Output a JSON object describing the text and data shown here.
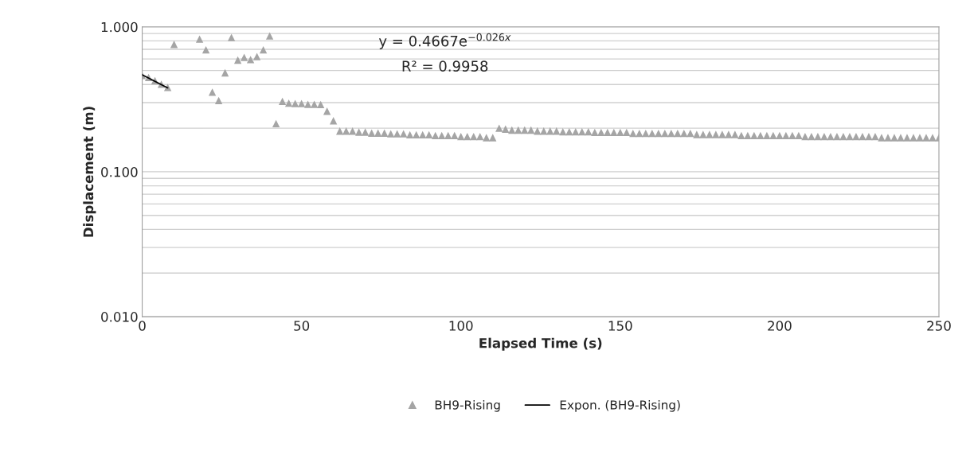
{
  "chart_data": {
    "type": "scatter",
    "xlabel": "Elapsed Time (s)",
    "ylabel": "Displacement (m)",
    "log": "y",
    "grid": "y",
    "legend": "bottom",
    "marker": "triangle",
    "xlim": [
      0,
      250
    ],
    "xticks": [
      0,
      50,
      100,
      150,
      200,
      250
    ],
    "ylim": [
      0.01,
      1
    ],
    "yticks": [
      {
        "value": 0.01,
        "label": "0.010"
      },
      {
        "value": 0.1,
        "label": "0.100"
      },
      {
        "value": 1,
        "label": "1.000"
      }
    ],
    "annotations": [
      "y = 0.4667e$^{−0.026x}$",
      "R² = 0.9958"
    ],
    "series": [
      {
        "name": "BH9-Rising",
        "color": "#a5a5a5",
        "x": [
          0,
          2,
          4,
          6,
          8,
          10,
          18,
          20,
          22,
          24,
          26,
          28,
          30,
          32,
          34,
          36,
          38,
          40,
          42,
          44,
          46,
          48,
          50,
          52,
          54,
          56,
          58,
          60,
          62,
          64,
          66,
          68,
          70,
          72,
          74,
          76,
          78,
          80,
          82,
          84,
          86,
          88,
          90,
          92,
          94,
          96,
          98,
          100,
          102,
          104,
          106,
          108,
          110,
          112,
          114,
          116,
          118,
          120,
          122,
          124,
          126,
          128,
          130,
          132,
          134,
          136,
          138,
          140,
          142,
          144,
          146,
          148,
          150,
          152,
          154,
          156,
          158,
          160,
          162,
          164,
          166,
          168,
          170,
          172,
          174,
          176,
          178,
          180,
          182,
          184,
          186,
          188,
          190,
          192,
          194,
          196,
          198,
          200,
          202,
          204,
          206,
          208,
          210,
          212,
          214,
          216,
          218,
          220,
          222,
          224,
          226,
          228,
          230,
          232,
          234,
          236,
          238,
          240,
          242,
          244,
          246,
          248,
          250
        ],
        "values": [
          0.462,
          0.447,
          0.425,
          0.402,
          0.382,
          0.757,
          0.824,
          0.695,
          0.354,
          0.31,
          0.482,
          0.845,
          0.59,
          0.616,
          0.595,
          0.624,
          0.695,
          0.867,
          0.215,
          0.306,
          0.298,
          0.296,
          0.296,
          0.292,
          0.292,
          0.291,
          0.262,
          0.225,
          0.191,
          0.191,
          0.191,
          0.188,
          0.188,
          0.185,
          0.185,
          0.185,
          0.183,
          0.183,
          0.183,
          0.18,
          0.18,
          0.18,
          0.18,
          0.178,
          0.178,
          0.178,
          0.178,
          0.175,
          0.175,
          0.175,
          0.175,
          0.172,
          0.172,
          0.2,
          0.197,
          0.194,
          0.194,
          0.194,
          0.194,
          0.191,
          0.191,
          0.191,
          0.191,
          0.189,
          0.189,
          0.189,
          0.189,
          0.189,
          0.187,
          0.187,
          0.187,
          0.187,
          0.187,
          0.187,
          0.184,
          0.184,
          0.184,
          0.184,
          0.184,
          0.184,
          0.184,
          0.184,
          0.184,
          0.184,
          0.181,
          0.181,
          0.181,
          0.181,
          0.181,
          0.181,
          0.181,
          0.178,
          0.178,
          0.178,
          0.178,
          0.178,
          0.178,
          0.178,
          0.178,
          0.178,
          0.178,
          0.175,
          0.175,
          0.175,
          0.175,
          0.175,
          0.175,
          0.175,
          0.175,
          0.175,
          0.175,
          0.175,
          0.175,
          0.172,
          0.172,
          0.172,
          0.172,
          0.172,
          0.172,
          0.172,
          0.172,
          0.172,
          0.172
        ]
      },
      {
        "name": "Expon. (BH9-Rising)",
        "type": "line",
        "color": "#000000",
        "marker": "none",
        "x": [
          0,
          8
        ],
        "values": [
          0.4667,
          0.3794
        ]
      }
    ]
  }
}
